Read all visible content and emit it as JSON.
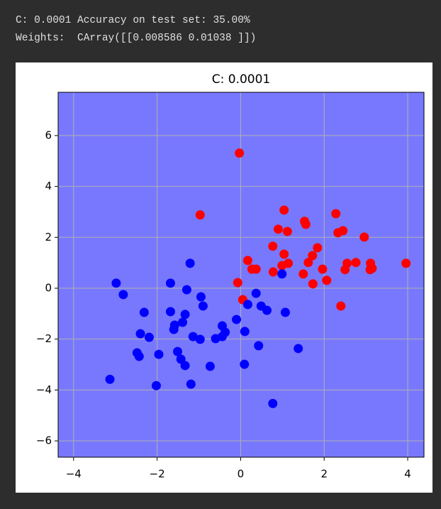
{
  "output_lines": [
    "C: 0.0001 Accuracy on test set: 35.00%",
    "Weights:  CArray([[0.008586 0.01038 ]])"
  ],
  "chart_data": {
    "type": "scatter",
    "title": "C: 0.0001",
    "background_color": "#7878ff",
    "grid": true,
    "xlim": [
      -4.37,
      4.39
    ],
    "xticks": [
      {
        "value": -4,
        "label": "−4"
      },
      {
        "value": -2,
        "label": "−2"
      },
      0,
      2,
      4
    ],
    "ylim": [
      -6.64,
      7.7
    ],
    "yticks": [
      {
        "value": -6,
        "label": "−6"
      },
      {
        "value": -4,
        "label": "−4"
      },
      {
        "value": -2,
        "label": "−2"
      },
      0,
      2,
      4,
      6
    ],
    "series": [
      {
        "color": "#ff0000",
        "x": [
          -0.03,
          -0.97,
          1.04,
          2.28,
          1.53,
          1.56,
          0.9,
          1.12,
          2.33,
          2.45,
          2.96,
          0.77,
          1.84,
          1.72,
          1.04,
          0.17,
          1.62,
          0.27,
          0.37,
          0.99,
          1.14,
          2.55,
          2.76,
          3.11,
          3.15,
          3.1,
          2.5,
          1.96,
          1.5,
          0.78,
          2.06,
          1.73,
          -0.07,
          3.96,
          2.4,
          0.05
        ],
        "values": [
          5.31,
          2.88,
          3.07,
          2.93,
          2.63,
          2.51,
          2.32,
          2.23,
          2.18,
          2.26,
          2.01,
          1.65,
          1.59,
          1.28,
          1.34,
          1.09,
          1.01,
          0.75,
          0.75,
          0.89,
          0.98,
          0.98,
          1.01,
          0.98,
          0.78,
          0.73,
          0.73,
          0.75,
          0.56,
          0.64,
          0.31,
          0.17,
          0.22,
          0.98,
          -0.7,
          -0.45
        ]
      },
      {
        "color": "#0000ff",
        "x": [
          -2.98,
          -2.81,
          -1.68,
          -1.21,
          -1.29,
          -0.95,
          -0.9,
          -2.31,
          -1.68,
          -1.33,
          -1.39,
          -1.58,
          -1.6,
          -2.4,
          -2.19,
          -1.14,
          -0.97,
          -0.44,
          -0.37,
          -0.44,
          -0.6,
          -0.1,
          0.1,
          0.17,
          0.37,
          0.49,
          0.63,
          0.99,
          1.07,
          -2.48,
          -2.43,
          -1.96,
          -1.51,
          -1.43,
          -1.33,
          -0.73,
          0.09,
          0.43,
          1.38,
          -3.13,
          -2.02,
          -1.19,
          0.77
        ],
        "values": [
          0.2,
          -0.25,
          0.2,
          0.98,
          -0.06,
          -0.34,
          -0.7,
          -0.95,
          -0.92,
          -1.03,
          -1.34,
          -1.45,
          -1.62,
          -1.79,
          -1.93,
          -1.9,
          -2.01,
          -1.48,
          -1.73,
          -1.9,
          -1.98,
          -1.23,
          -1.7,
          -0.64,
          -0.2,
          -0.7,
          -0.87,
          0.56,
          -0.95,
          -2.54,
          -2.68,
          -2.6,
          -2.49,
          -2.79,
          -3.04,
          -3.07,
          -2.99,
          -2.26,
          -2.37,
          -3.58,
          -3.83,
          -3.77,
          -4.53
        ]
      }
    ]
  }
}
